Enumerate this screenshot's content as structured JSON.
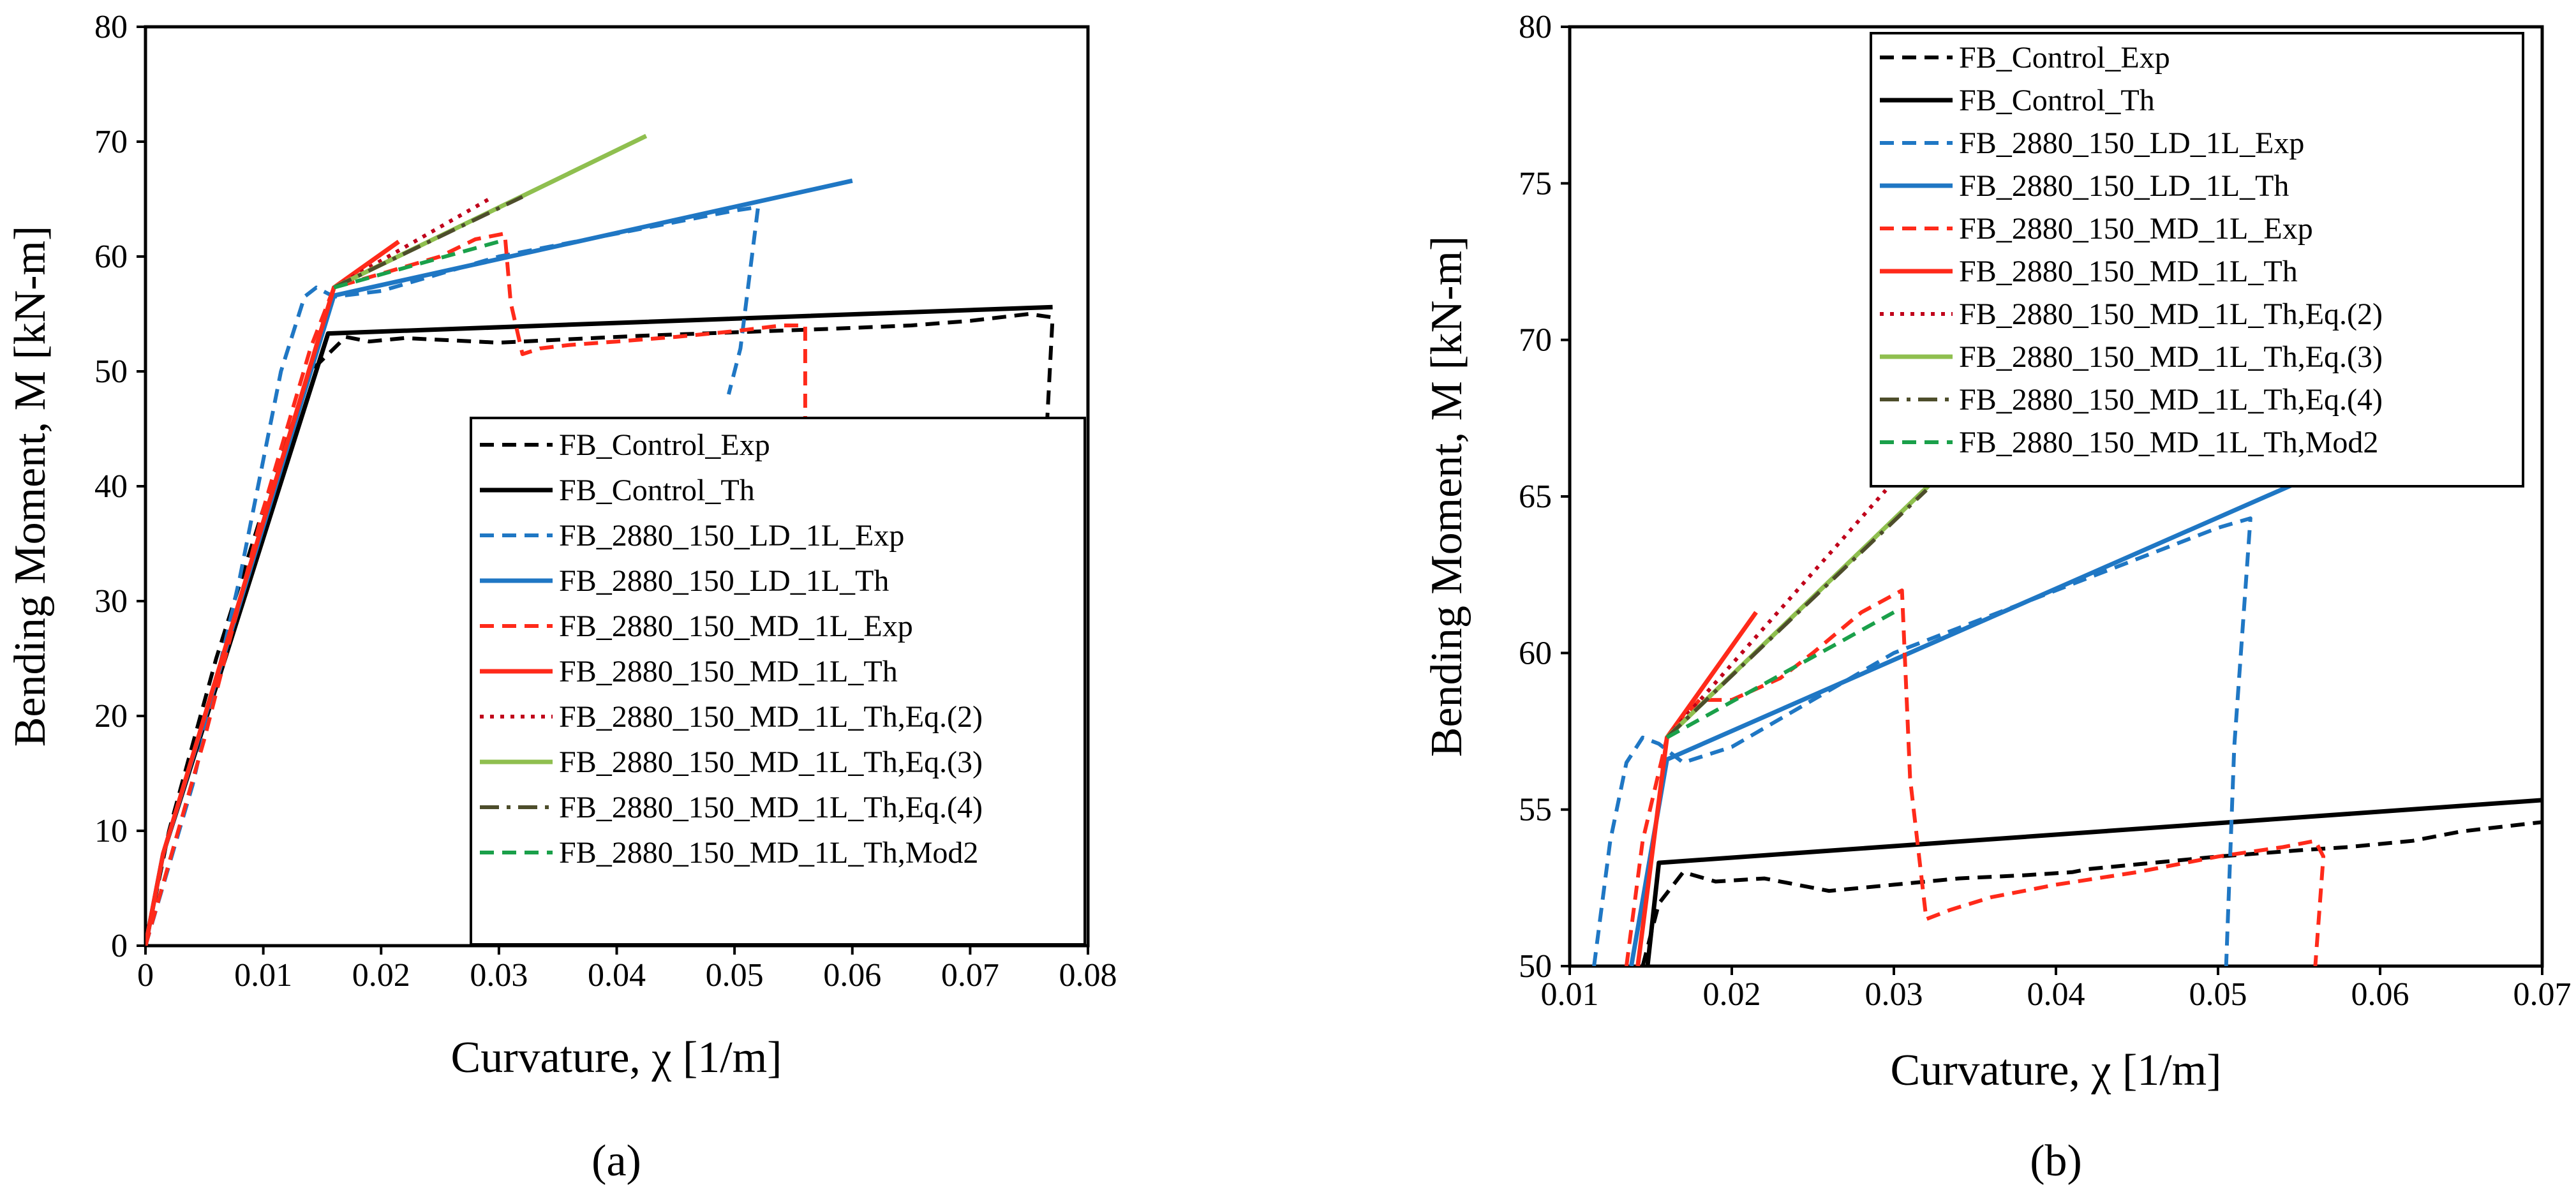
{
  "chart_data": [
    {
      "type": "line",
      "caption": "(a)",
      "xlabel": "Curvature, χ [1/m]",
      "ylabel": "Bending Moment, M [kN-m]",
      "xlim": [
        0,
        0.08
      ],
      "ylim": [
        0,
        80
      ],
      "xticks": [
        "0",
        "0.01",
        "0.02",
        "0.03",
        "0.04",
        "0.05",
        "0.06",
        "0.07",
        "0.08"
      ],
      "yticks": [
        "0",
        "10",
        "20",
        "30",
        "40",
        "50",
        "60",
        "70",
        "80"
      ],
      "grid": false,
      "legend_position": "bottom-right",
      "series": [
        {
          "name": "FB_Control_Exp",
          "color": "#000000",
          "dash": "dashed",
          "x": [
            0,
            0.002,
            0.006,
            0.01,
            0.014,
            0.017,
            0.019,
            0.022,
            0.03,
            0.034,
            0.04,
            0.042,
            0.05,
            0.058,
            0.065,
            0.07,
            0.075,
            0.077,
            0.0765
          ],
          "y": [
            0,
            10,
            25,
            38,
            50,
            53,
            52.6,
            52.9,
            52.5,
            52.7,
            53.0,
            53.1,
            53.4,
            53.7,
            54.0,
            54.4,
            55.0,
            54.7,
            45
          ]
        },
        {
          "name": "FB_Control_Th",
          "color": "#000000",
          "dash": "solid",
          "x": [
            0,
            0.0015,
            0.0155,
            0.077
          ],
          "y": [
            0,
            8,
            53.3,
            55.6
          ]
        },
        {
          "name": "FB_2880_150_LD_1L_Exp",
          "color": "#1f77c4",
          "dash": "dashed",
          "x": [
            0,
            0.004,
            0.008,
            0.0115,
            0.0135,
            0.0145,
            0.016,
            0.02,
            0.025,
            0.03,
            0.035,
            0.04,
            0.045,
            0.05,
            0.052,
            0.0505,
            0.0495
          ],
          "y": [
            0,
            14,
            32,
            50,
            56.5,
            57.3,
            56.5,
            57.0,
            58.5,
            60.0,
            61.0,
            62.0,
            63.0,
            64.0,
            64.3,
            52,
            48
          ]
        },
        {
          "name": "FB_2880_150_LD_1L_Th",
          "color": "#1f77c4",
          "dash": "solid",
          "x": [
            0,
            0.0015,
            0.016,
            0.06
          ],
          "y": [
            0,
            8,
            56.6,
            66.6
          ]
        },
        {
          "name": "FB_2880_150_MD_1L_Exp",
          "color": "#ff2a1a",
          "dash": "dashed",
          "x": [
            0,
            0.005,
            0.01,
            0.014,
            0.016,
            0.02,
            0.025,
            0.028,
            0.0305,
            0.031,
            0.032,
            0.0335,
            0.036,
            0.04,
            0.045,
            0.05,
            0.054,
            0.056,
            0.056
          ],
          "y": [
            0,
            18,
            38,
            52,
            57.3,
            58.5,
            60,
            61.5,
            62,
            56,
            51.5,
            52,
            52.3,
            52.6,
            53,
            53.5,
            54,
            54,
            0
          ]
        },
        {
          "name": "FB_2880_150_MD_1L_Th",
          "color": "#ff2a1a",
          "dash": "solid",
          "x": [
            0,
            0.0015,
            0.016,
            0.0215
          ],
          "y": [
            0,
            8,
            57.3,
            61.3
          ]
        },
        {
          "name": "FB_2880_150_MD_1L_Th,Eq.(2)",
          "color": "#c0001a",
          "dash": "dotted",
          "x": [
            0.016,
            0.0295
          ],
          "y": [
            57.3,
            65.2
          ]
        },
        {
          "name": "FB_2880_150_MD_1L_Th,Eq.(3)",
          "color": "#8fbf4f",
          "dash": "solid",
          "x": [
            0.016,
            0.0425
          ],
          "y": [
            57.3,
            70.5
          ]
        },
        {
          "name": "FB_2880_150_MD_1L_Th,Eq.(4)",
          "color": "#4d4d2b",
          "dash": "dashdot",
          "x": [
            0.016,
            0.032
          ],
          "y": [
            57.3,
            65.2
          ]
        },
        {
          "name": "FB_2880_150_MD_1L_Th,Mod2",
          "color": "#1aa04a",
          "dash": "dashed",
          "x": [
            0.016,
            0.03
          ],
          "y": [
            57.3,
            61.3
          ]
        }
      ]
    },
    {
      "type": "line",
      "caption": "(b)",
      "xlabel": "Curvature, χ [1/m]",
      "ylabel": "Bending Moment, M [kN-m]",
      "xlim": [
        0.01,
        0.07
      ],
      "ylim": [
        50,
        80
      ],
      "xticks": [
        "0.01",
        "0.02",
        "0.03",
        "0.04",
        "0.05",
        "0.06",
        "0.07"
      ],
      "yticks": [
        "50",
        "55",
        "60",
        "65",
        "70",
        "75",
        "80"
      ],
      "grid": false,
      "legend_position": "top",
      "series": [
        {
          "name": "FB_Control_Exp",
          "color": "#000000",
          "dash": "dashed",
          "x": [
            0.0145,
            0.0155,
            0.017,
            0.019,
            0.022,
            0.026,
            0.03,
            0.034,
            0.038,
            0.041,
            0.042,
            0.046,
            0.05,
            0.055,
            0.058,
            0.062,
            0.065,
            0.07
          ],
          "y": [
            50,
            52,
            53.0,
            52.7,
            52.8,
            52.4,
            52.6,
            52.8,
            52.9,
            53.0,
            53.1,
            53.3,
            53.5,
            53.7,
            53.8,
            54.0,
            54.3,
            54.6
          ]
        },
        {
          "name": "FB_Control_Th",
          "color": "#000000",
          "dash": "solid",
          "x": [
            0.0148,
            0.0155,
            0.07
          ],
          "y": [
            50,
            53.3,
            55.3
          ]
        },
        {
          "name": "FB_2880_150_LD_1L_Exp",
          "color": "#1f77c4",
          "dash": "dashed",
          "x": [
            0.0115,
            0.0125,
            0.0135,
            0.0145,
            0.0155,
            0.017,
            0.02,
            0.025,
            0.03,
            0.035,
            0.04,
            0.045,
            0.05,
            0.052,
            0.051,
            0.0505
          ],
          "y": [
            50,
            54,
            56.5,
            57.3,
            57.1,
            56.5,
            57.0,
            58.5,
            60.0,
            61.0,
            62.0,
            63.0,
            64.0,
            64.3,
            57,
            50
          ]
        },
        {
          "name": "FB_2880_150_LD_1L_Th",
          "color": "#1f77c4",
          "dash": "solid",
          "x": [
            0.0138,
            0.016,
            0.06
          ],
          "y": [
            50,
            56.6,
            66.6
          ]
        },
        {
          "name": "FB_2880_150_MD_1L_Exp",
          "color": "#ff2a1a",
          "dash": "dashed",
          "x": [
            0.0135,
            0.0145,
            0.016,
            0.018,
            0.02,
            0.023,
            0.025,
            0.028,
            0.0305,
            0.031,
            0.032,
            0.0335,
            0.036,
            0.04,
            0.045,
            0.05,
            0.054,
            0.056,
            0.0565,
            0.056
          ],
          "y": [
            50,
            54,
            57.3,
            58.5,
            58.5,
            59.2,
            60,
            61.3,
            62,
            56,
            51.5,
            51.8,
            52.2,
            52.6,
            53.0,
            53.5,
            53.8,
            54.0,
            53.5,
            50
          ]
        },
        {
          "name": "FB_2880_150_MD_1L_Th",
          "color": "#ff2a1a",
          "dash": "solid",
          "x": [
            0.0142,
            0.016,
            0.0215
          ],
          "y": [
            50,
            57.3,
            61.3
          ]
        },
        {
          "name": "FB_2880_150_MD_1L_Th,Eq.(2)",
          "color": "#c0001a",
          "dash": "dotted",
          "x": [
            0.016,
            0.0295
          ],
          "y": [
            57.3,
            65.2
          ]
        },
        {
          "name": "FB_2880_150_MD_1L_Th,Eq.(3)",
          "color": "#8fbf4f",
          "dash": "solid",
          "x": [
            0.016,
            0.0425
          ],
          "y": [
            57.3,
            70.5
          ]
        },
        {
          "name": "FB_2880_150_MD_1L_Th,Eq.(4)",
          "color": "#4d4d2b",
          "dash": "dashdot",
          "x": [
            0.016,
            0.032
          ],
          "y": [
            57.3,
            65.2
          ]
        },
        {
          "name": "FB_2880_150_MD_1L_Th,Mod2",
          "color": "#1aa04a",
          "dash": "dashed",
          "x": [
            0.016,
            0.03
          ],
          "y": [
            57.3,
            61.3
          ]
        }
      ]
    }
  ]
}
